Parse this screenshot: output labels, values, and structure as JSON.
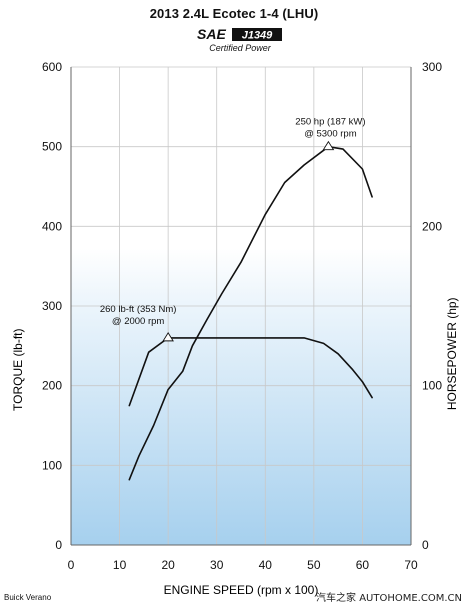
{
  "header": {
    "title": "2013 2.4L Ecotec 1-4 (LHU)",
    "logo": {
      "sae_text": "SAE",
      "standard_text": "J1349",
      "certified_text": "Certified Power"
    }
  },
  "footer": {
    "vehicle": "Buick Verano",
    "watermark": "汽车之家 AUTOHOME.COM.CN"
  },
  "chart_data": {
    "type": "line",
    "title": "2013 2.4L Ecotec 1-4 (LHU)",
    "xlabel": "ENGINE SPEED (rpm x 100)",
    "ylabel_left": "TORQUE (lb-ft)",
    "ylabel_right": "HORSEPOWER (hp)",
    "xlim": [
      0,
      70
    ],
    "ylim_left": [
      0,
      600
    ],
    "ylim_right": [
      0,
      300
    ],
    "x_ticks": [
      0,
      10,
      20,
      30,
      40,
      50,
      60,
      70
    ],
    "y_ticks_left": [
      0,
      100,
      200,
      300,
      400,
      500,
      600
    ],
    "y_ticks_right": [
      0,
      100,
      200,
      300
    ],
    "grid": true,
    "background": "gradient: white at top to light blue at bottom",
    "series": [
      {
        "id": "torque",
        "axis": "left",
        "color": "#111111",
        "x": [
          12,
          16,
          20,
          25,
          30,
          35,
          40,
          45,
          48,
          52,
          55,
          58,
          60,
          62
        ],
        "y": [
          175,
          242,
          260,
          260,
          260,
          260,
          260,
          260,
          260,
          253,
          240,
          220,
          205,
          185
        ]
      },
      {
        "id": "horsepower",
        "axis": "left",
        "color": "#111111",
        "x": [
          12,
          14,
          17,
          20,
          23,
          25,
          28,
          31,
          35,
          40,
          44,
          48,
          53,
          56,
          60,
          62
        ],
        "y": [
          82,
          112,
          150,
          195,
          218,
          250,
          283,
          315,
          355,
          415,
          455,
          477,
          500,
          497,
          472,
          437
        ]
      }
    ],
    "markers": [
      {
        "series": "torque",
        "x": 20,
        "y": 260,
        "shape": "triangle"
      },
      {
        "series": "horsepower",
        "x": 53,
        "y": 500,
        "shape": "triangle"
      }
    ],
    "annotations": [
      {
        "id": "torque_peak",
        "lines": [
          "260 lb-ft (353 Nm)",
          "@ 2000 rpm"
        ],
        "x": 20,
        "y": 260
      },
      {
        "id": "power_peak",
        "lines": [
          "250 hp (187 kW)",
          "@ 5300 rpm"
        ],
        "x": 53,
        "y": 500
      }
    ]
  }
}
